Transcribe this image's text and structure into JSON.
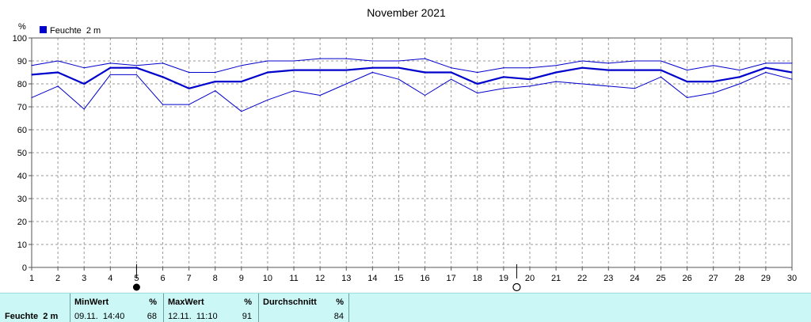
{
  "chart_data": {
    "type": "line",
    "title": "November 2021",
    "ylabel": "%",
    "ylim": [
      0,
      100
    ],
    "yticks": [
      0,
      10,
      20,
      30,
      40,
      50,
      60,
      70,
      80,
      90,
      100
    ],
    "x": [
      1,
      2,
      3,
      4,
      5,
      6,
      7,
      8,
      9,
      10,
      11,
      12,
      13,
      14,
      15,
      16,
      17,
      18,
      19,
      20,
      21,
      22,
      23,
      24,
      25,
      26,
      27,
      28,
      29,
      30
    ],
    "grid": true,
    "legend": "top-left",
    "legend_label": "Feuchte  2 m",
    "moon_phases": [
      {
        "day": 5,
        "phase": "new-moon"
      },
      {
        "day": 19.5,
        "phase": "full-moon"
      }
    ],
    "series": [
      {
        "name": "Feuchte  2 m",
        "role": "avg",
        "color": "#0000cc",
        "values": [
          84,
          85,
          80,
          87,
          87,
          83,
          78,
          81,
          81,
          85,
          86,
          86,
          86,
          87,
          87,
          85,
          85,
          80,
          83,
          82,
          85,
          87,
          86,
          86,
          86,
          81,
          81,
          83,
          87,
          85
        ]
      },
      {
        "role": "max",
        "color": "#0000cc",
        "values": [
          88,
          90,
          87,
          89,
          88,
          89,
          85,
          85,
          88,
          90,
          90,
          91,
          91,
          90,
          90,
          91,
          87,
          85,
          87,
          87,
          88,
          90,
          89,
          90,
          90,
          86,
          88,
          86,
          89,
          89
        ]
      },
      {
        "role": "min",
        "color": "#0000cc",
        "values": [
          74,
          79,
          69,
          84,
          84,
          71,
          71,
          77,
          68,
          73,
          77,
          75,
          80,
          85,
          82,
          75,
          82,
          76,
          78,
          79,
          81,
          80,
          79,
          78,
          83,
          74,
          76,
          80,
          85,
          82
        ]
      }
    ]
  },
  "stats_panel": {
    "sensor": "Feuchte  2 m",
    "min": {
      "label": "MinWert",
      "unit": "%",
      "datetime": "09.11.  14:40",
      "value": "68"
    },
    "max": {
      "label": "MaxWert",
      "unit": "%",
      "datetime": "12.11.  11:10",
      "value": "91"
    },
    "avg": {
      "label": "Durchschnitt",
      "unit": "%",
      "value": "84"
    }
  }
}
